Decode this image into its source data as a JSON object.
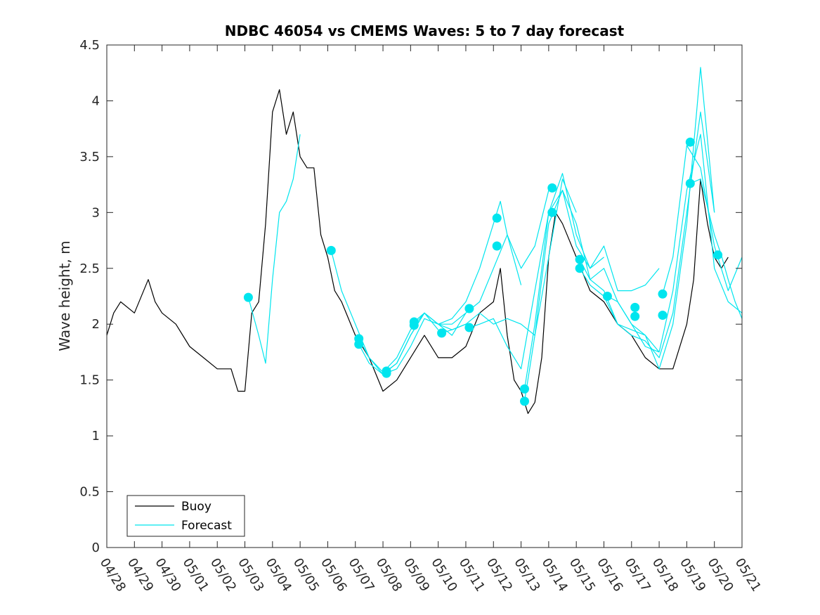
{
  "chart_data": {
    "type": "line",
    "title": "NDBC 46054 vs CMEMS Waves: 5 to 7 day forecast",
    "xlabel": "",
    "ylabel": "Wave height, m",
    "x_unit": "date (MM/DD)",
    "xlim": [
      "04/28",
      "05/21"
    ],
    "ylim": [
      0,
      4.5
    ],
    "x_ticks": [
      "04/28",
      "04/29",
      "04/30",
      "05/01",
      "05/02",
      "05/03",
      "05/04",
      "05/05",
      "05/06",
      "05/07",
      "05/08",
      "05/09",
      "05/10",
      "05/11",
      "05/12",
      "05/13",
      "05/14",
      "05/15",
      "05/16",
      "05/17",
      "05/18",
      "05/19",
      "05/20",
      "05/21"
    ],
    "y_ticks": [
      "0",
      "0.5",
      "1",
      "1.5",
      "2",
      "2.5",
      "3",
      "3.5",
      "4",
      "4.5"
    ],
    "grid": false,
    "legend": {
      "placement": "bottom-left",
      "entries": [
        "Buoy",
        "Forecast"
      ]
    },
    "colors": {
      "buoy": "#000000",
      "forecast": "#00E5EE",
      "axes": "#262626"
    },
    "series": [
      {
        "name": "Buoy",
        "x": [
          "04/28 00:00",
          "04/28 06:00",
          "04/28 12:00",
          "04/29 00:00",
          "04/29 12:00",
          "04/29 18:00",
          "04/30 00:00",
          "04/30 12:00",
          "05/01 00:00",
          "05/01 12:00",
          "05/02 00:00",
          "05/02 12:00",
          "05/02 18:00",
          "05/03 00:00",
          "05/03 06:00",
          "05/03 12:00",
          "05/03 18:00",
          "05/04 00:00",
          "05/04 06:00",
          "05/04 12:00",
          "05/04 18:00",
          "05/05 00:00",
          "05/05 06:00",
          "05/05 12:00",
          "05/05 18:00",
          "05/06 00:00",
          "05/06 06:00",
          "05/06 12:00",
          "05/07 00:00",
          "05/07 12:00",
          "05/08 00:00",
          "05/08 12:00",
          "05/09 00:00",
          "05/09 12:00",
          "05/10 00:00",
          "05/10 12:00",
          "05/11 00:00",
          "05/11 12:00",
          "05/12 00:00",
          "05/12 06:00",
          "05/12 12:00",
          "05/12 18:00",
          "05/13 00:00",
          "05/13 06:00",
          "05/13 12:00",
          "05/13 18:00",
          "05/14 00:00",
          "05/14 06:00",
          "05/14 12:00",
          "05/15 00:00",
          "05/15 12:00",
          "05/16 00:00",
          "05/16 12:00",
          "05/17 00:00",
          "05/17 12:00",
          "05/18 00:00",
          "05/18 12:00",
          "05/19 00:00",
          "05/19 06:00",
          "05/19 12:00",
          "05/19 18:00",
          "05/20 00:00",
          "05/20 06:00",
          "05/20 12:00"
        ],
        "values": [
          1.9,
          2.1,
          2.2,
          2.1,
          2.4,
          2.2,
          2.1,
          2.0,
          1.8,
          1.7,
          1.6,
          1.6,
          1.4,
          1.4,
          2.1,
          2.2,
          2.9,
          3.9,
          4.1,
          3.7,
          3.9,
          3.5,
          3.4,
          3.4,
          2.8,
          2.6,
          2.3,
          2.2,
          1.9,
          1.7,
          1.4,
          1.5,
          1.7,
          1.9,
          1.7,
          1.7,
          1.8,
          2.1,
          2.2,
          2.5,
          1.9,
          1.5,
          1.4,
          1.2,
          1.3,
          1.7,
          2.6,
          3.0,
          2.9,
          2.6,
          2.3,
          2.2,
          2.0,
          1.9,
          1.7,
          1.6,
          1.6,
          2.0,
          2.4,
          3.3,
          2.9,
          2.6,
          2.5,
          2.6
        ]
      },
      {
        "name": "Forecast",
        "runs": [
          {
            "x": [
              "05/03 03:00",
              "05/03 12:00",
              "05/03 18:00",
              "05/04 00:00",
              "05/04 06:00",
              "05/04 12:00",
              "05/04 18:00",
              "05/05 00:00"
            ],
            "values": [
              2.24,
              1.9,
              1.65,
              2.4,
              3.0,
              3.1,
              3.3,
              3.7
            ]
          },
          {
            "x": [
              "05/06 03:00",
              "05/06 12:00",
              "05/07 00:00",
              "05/07 12:00",
              "05/08 00:00",
              "05/08 12:00",
              "05/09 00:00",
              "05/09 12:00",
              "05/10 00:00"
            ],
            "values": [
              2.66,
              2.3,
              2.0,
              1.7,
              1.57,
              1.7,
              1.95,
              2.1,
              1.95
            ]
          },
          {
            "x": [
              "05/07 03:00",
              "05/07 12:00",
              "05/08 00:00",
              "05/08 12:00",
              "05/09 00:00",
              "05/09 12:00",
              "05/10 00:00",
              "05/10 12:00",
              "05/11 00:00"
            ],
            "values": [
              1.87,
              1.7,
              1.55,
              1.6,
              1.8,
              2.05,
              2.0,
              1.95,
              2.0
            ]
          },
          {
            "x": [
              "05/07 03:00",
              "05/07 12:00",
              "05/08 00:00",
              "05/08 12:00",
              "05/09 00:00",
              "05/09 12:00",
              "05/10 00:00",
              "05/10 12:00",
              "05/11 00:00"
            ],
            "values": [
              1.82,
              1.65,
              1.55,
              1.65,
              1.9,
              2.1,
              2.0,
              1.9,
              2.1
            ]
          },
          {
            "x": [
              "05/08 03:00",
              "05/08 12:00",
              "05/09 00:00",
              "05/09 12:00",
              "05/10 00:00",
              "05/10 12:00",
              "05/11 00:00",
              "05/11 12:00",
              "05/12 00:00",
              "05/12 06:00",
              "05/12 12:00",
              "05/13 00:00"
            ],
            "values": [
              1.58,
              1.65,
              1.9,
              2.1,
              2.0,
              2.05,
              2.2,
              2.5,
              2.9,
              3.1,
              2.8,
              2.35
            ]
          },
          {
            "x": [
              "05/09 03:00",
              "05/09 12:00",
              "05/10 00:00",
              "05/10 12:00",
              "05/11 00:00",
              "05/11 12:00",
              "05/12 00:00",
              "05/12 12:00",
              "05/13 00:00",
              "05/13 12:00",
              "05/14 00:00"
            ],
            "values": [
              2.02,
              2.1,
              2.0,
              2.0,
              2.1,
              2.2,
              2.5,
              2.8,
              2.5,
              2.7,
              3.2
            ]
          },
          {
            "x": [
              "05/10 03:00",
              "05/10 12:00",
              "05/11 00:00",
              "05/11 12:00",
              "05/12 00:00",
              "05/12 12:00",
              "05/13 00:00",
              "05/13 12:00",
              "05/14 00:00",
              "05/14 12:00",
              "05/15 00:00"
            ],
            "values": [
              1.92,
              1.95,
              2.0,
              2.1,
              2.0,
              2.05,
              2.0,
              1.9,
              2.6,
              3.3,
              3.0
            ]
          },
          {
            "x": [
              "05/11 03:00",
              "05/11 12:00",
              "05/12 00:00",
              "05/12 12:00",
              "05/13 00:00",
              "05/13 12:00",
              "05/14 00:00",
              "05/14 12:00",
              "05/15 00:00",
              "05/15 12:00",
              "05/16 00:00"
            ],
            "values": [
              1.97,
              2.0,
              2.05,
              1.8,
              1.6,
              2.3,
              3.0,
              3.2,
              2.7,
              2.5,
              2.6
            ]
          },
          {
            "x": [
              "05/13 03:00",
              "05/13 12:00",
              "05/14 00:00",
              "05/14 12:00",
              "05/15 00:00",
              "05/15 12:00",
              "05/16 00:00",
              "05/16 12:00",
              "05/17 00:00",
              "05/17 12:00",
              "05/18 00:00"
            ],
            "values": [
              1.42,
              2.0,
              3.0,
              3.35,
              2.8,
              2.5,
              2.7,
              2.3,
              2.3,
              2.35,
              2.5
            ]
          },
          {
            "x": [
              "05/13 03:00",
              "05/13 12:00",
              "05/14 00:00",
              "05/14 12:00",
              "05/15 00:00",
              "05/15 12:00",
              "05/16 00:00",
              "05/16 12:00",
              "05/17 00:00",
              "05/17 12:00",
              "05/18 00:00"
            ],
            "values": [
              1.31,
              1.9,
              2.9,
              3.2,
              2.9,
              2.4,
              2.5,
              2.2,
              2.0,
              1.8,
              1.75
            ]
          },
          {
            "x": [
              "05/15 03:00",
              "05/15 12:00",
              "05/16 00:00",
              "05/16 12:00",
              "05/17 00:00",
              "05/17 12:00",
              "05/18 00:00",
              "05/18 12:00",
              "05/19 00:00",
              "05/19 12:00",
              "05/20 00:00"
            ],
            "values": [
              2.58,
              2.4,
              2.3,
              2.0,
              1.95,
              1.9,
              1.6,
              2.0,
              2.9,
              4.3,
              3.0
            ]
          },
          {
            "x": [
              "05/15 03:00",
              "05/15 12:00",
              "05/16 00:00",
              "05/16 12:00",
              "05/17 00:00",
              "05/17 12:00",
              "05/18 00:00",
              "05/18 12:00",
              "05/19 00:00",
              "05/19 12:00",
              "05/20 00:00"
            ],
            "values": [
              2.5,
              2.35,
              2.25,
              2.0,
              1.9,
              1.85,
              1.7,
              2.1,
              3.0,
              3.9,
              3.0
            ]
          },
          {
            "x": [
              "05/16 03:00",
              "05/16 12:00",
              "05/17 00:00",
              "05/17 12:00",
              "05/18 00:00",
              "05/18 12:00",
              "05/19 00:00",
              "05/19 12:00",
              "05/20 00:00",
              "05/20 12:00",
              "05/21 00:00"
            ],
            "values": [
              2.25,
              2.2,
              2.0,
              1.9,
              1.75,
              2.3,
              3.2,
              3.7,
              2.5,
              2.2,
              2.1
            ]
          },
          {
            "x": [
              "05/18 03:00",
              "05/18 12:00",
              "05/19 00:00",
              "05/19 12:00",
              "05/20 00:00",
              "05/20 12:00",
              "05/21 00:00"
            ],
            "values": [
              2.27,
              2.6,
              3.6,
              3.4,
              2.7,
              2.3,
              2.6
            ]
          },
          {
            "x": [
              "05/19 03:00",
              "05/19 12:00",
              "05/20 00:00",
              "05/20 06:00",
              "05/20 12:00",
              "05/20 18:00",
              "05/21 00:00"
            ],
            "values": [
              3.26,
              3.3,
              2.8,
              2.62,
              2.4,
              2.2,
              2.05
            ]
          }
        ],
        "markers": [
          {
            "x": "05/03 03:00",
            "y": 2.24
          },
          {
            "x": "05/06 03:00",
            "y": 2.66
          },
          {
            "x": "05/07 03:00",
            "y": 1.87
          },
          {
            "x": "05/07 03:00",
            "y": 1.82
          },
          {
            "x": "05/08 03:00",
            "y": 1.58
          },
          {
            "x": "05/08 03:00",
            "y": 1.56
          },
          {
            "x": "05/09 03:00",
            "y": 2.02
          },
          {
            "x": "05/09 03:00",
            "y": 1.99
          },
          {
            "x": "05/10 03:00",
            "y": 1.92
          },
          {
            "x": "05/11 03:00",
            "y": 2.14
          },
          {
            "x": "05/11 03:00",
            "y": 1.97
          },
          {
            "x": "05/12 03:00",
            "y": 2.95
          },
          {
            "x": "05/12 03:00",
            "y": 2.7
          },
          {
            "x": "05/13 03:00",
            "y": 1.42
          },
          {
            "x": "05/13 03:00",
            "y": 1.31
          },
          {
            "x": "05/14 03:00",
            "y": 3.22
          },
          {
            "x": "05/14 03:00",
            "y": 3.0
          },
          {
            "x": "05/15 03:00",
            "y": 2.58
          },
          {
            "x": "05/15 03:00",
            "y": 2.5
          },
          {
            "x": "05/16 03:00",
            "y": 2.25
          },
          {
            "x": "05/17 03:00",
            "y": 2.15
          },
          {
            "x": "05/17 03:00",
            "y": 2.07
          },
          {
            "x": "05/18 03:00",
            "y": 2.27
          },
          {
            "x": "05/18 03:00",
            "y": 2.08
          },
          {
            "x": "05/19 03:00",
            "y": 3.63
          },
          {
            "x": "05/19 03:00",
            "y": 3.26
          },
          {
            "x": "05/20 03:00",
            "y": 2.62
          }
        ]
      }
    ]
  }
}
